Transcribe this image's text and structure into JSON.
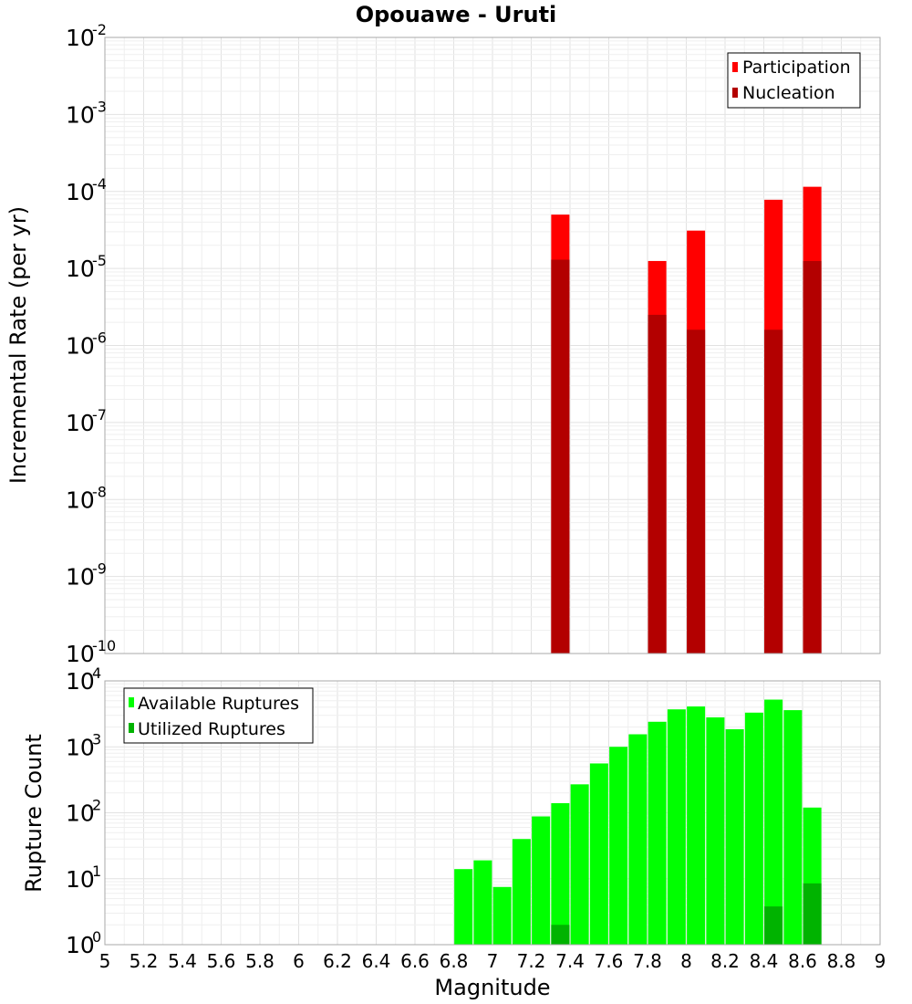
{
  "chart_data": [
    {
      "type": "bar",
      "title": "Opouawe - Uruti",
      "xlabel": "",
      "ylabel": "Incremental Rate (per yr)",
      "y_scale": "log",
      "xlim": [
        5,
        9
      ],
      "ylim": [
        1e-10,
        0.01
      ],
      "y_tick_exponents": [
        -10,
        -9,
        -8,
        -7,
        -6,
        -5,
        -4,
        -3,
        -2
      ],
      "grid": true,
      "legend_position": "top-right",
      "series": [
        {
          "name": "Participation",
          "color": "#ff0000",
          "points": [
            {
              "x": 7.35,
              "y": 5e-05
            },
            {
              "x": 7.85,
              "y": 1.25e-05
            },
            {
              "x": 8.05,
              "y": 3.1e-05
            },
            {
              "x": 8.45,
              "y": 7.8e-05
            },
            {
              "x": 8.65,
              "y": 0.000115
            }
          ]
        },
        {
          "name": "Nucleation",
          "color": "#b30000",
          "points": [
            {
              "x": 7.35,
              "y": 1.3e-05
            },
            {
              "x": 7.85,
              "y": 2.5e-06
            },
            {
              "x": 8.05,
              "y": 1.6e-06
            },
            {
              "x": 8.45,
              "y": 1.6e-06
            },
            {
              "x": 8.65,
              "y": 1.25e-05
            }
          ]
        }
      ]
    },
    {
      "type": "bar",
      "title": "",
      "xlabel": "Magnitude",
      "ylabel": "Rupture Count",
      "y_scale": "log",
      "xlim": [
        5,
        9
      ],
      "ylim": [
        1,
        10000
      ],
      "y_tick_exponents": [
        0,
        1,
        2,
        3,
        4
      ],
      "x_ticks": [
        "5",
        "5.2",
        "5.4",
        "5.6",
        "5.8",
        "6",
        "6.2",
        "6.4",
        "6.6",
        "6.8",
        "7",
        "7.2",
        "7.4",
        "7.6",
        "7.8",
        "8",
        "8.2",
        "8.4",
        "8.6",
        "8.8",
        "9"
      ],
      "grid": true,
      "legend_position": "top-left",
      "series": [
        {
          "name": "Available Ruptures",
          "color": "#00ff00",
          "points": [
            {
              "x": 6.85,
              "y": 14
            },
            {
              "x": 6.95,
              "y": 19
            },
            {
              "x": 7.05,
              "y": 7.5
            },
            {
              "x": 7.15,
              "y": 40
            },
            {
              "x": 7.25,
              "y": 88
            },
            {
              "x": 7.35,
              "y": 140
            },
            {
              "x": 7.45,
              "y": 270
            },
            {
              "x": 7.55,
              "y": 560
            },
            {
              "x": 7.65,
              "y": 1000
            },
            {
              "x": 7.75,
              "y": 1550
            },
            {
              "x": 7.85,
              "y": 2400
            },
            {
              "x": 7.95,
              "y": 3700
            },
            {
              "x": 8.05,
              "y": 4100
            },
            {
              "x": 8.15,
              "y": 2800
            },
            {
              "x": 8.25,
              "y": 1850
            },
            {
              "x": 8.35,
              "y": 3300
            },
            {
              "x": 8.45,
              "y": 5200
            },
            {
              "x": 8.55,
              "y": 3600
            },
            {
              "x": 8.65,
              "y": 120
            }
          ]
        },
        {
          "name": "Utilized Ruptures",
          "color": "#00b300",
          "points": [
            {
              "x": 7.35,
              "y": 2
            },
            {
              "x": 7.85,
              "y": 1
            },
            {
              "x": 8.05,
              "y": 1
            },
            {
              "x": 8.45,
              "y": 3.8
            },
            {
              "x": 8.65,
              "y": 8.5
            }
          ]
        }
      ]
    }
  ]
}
